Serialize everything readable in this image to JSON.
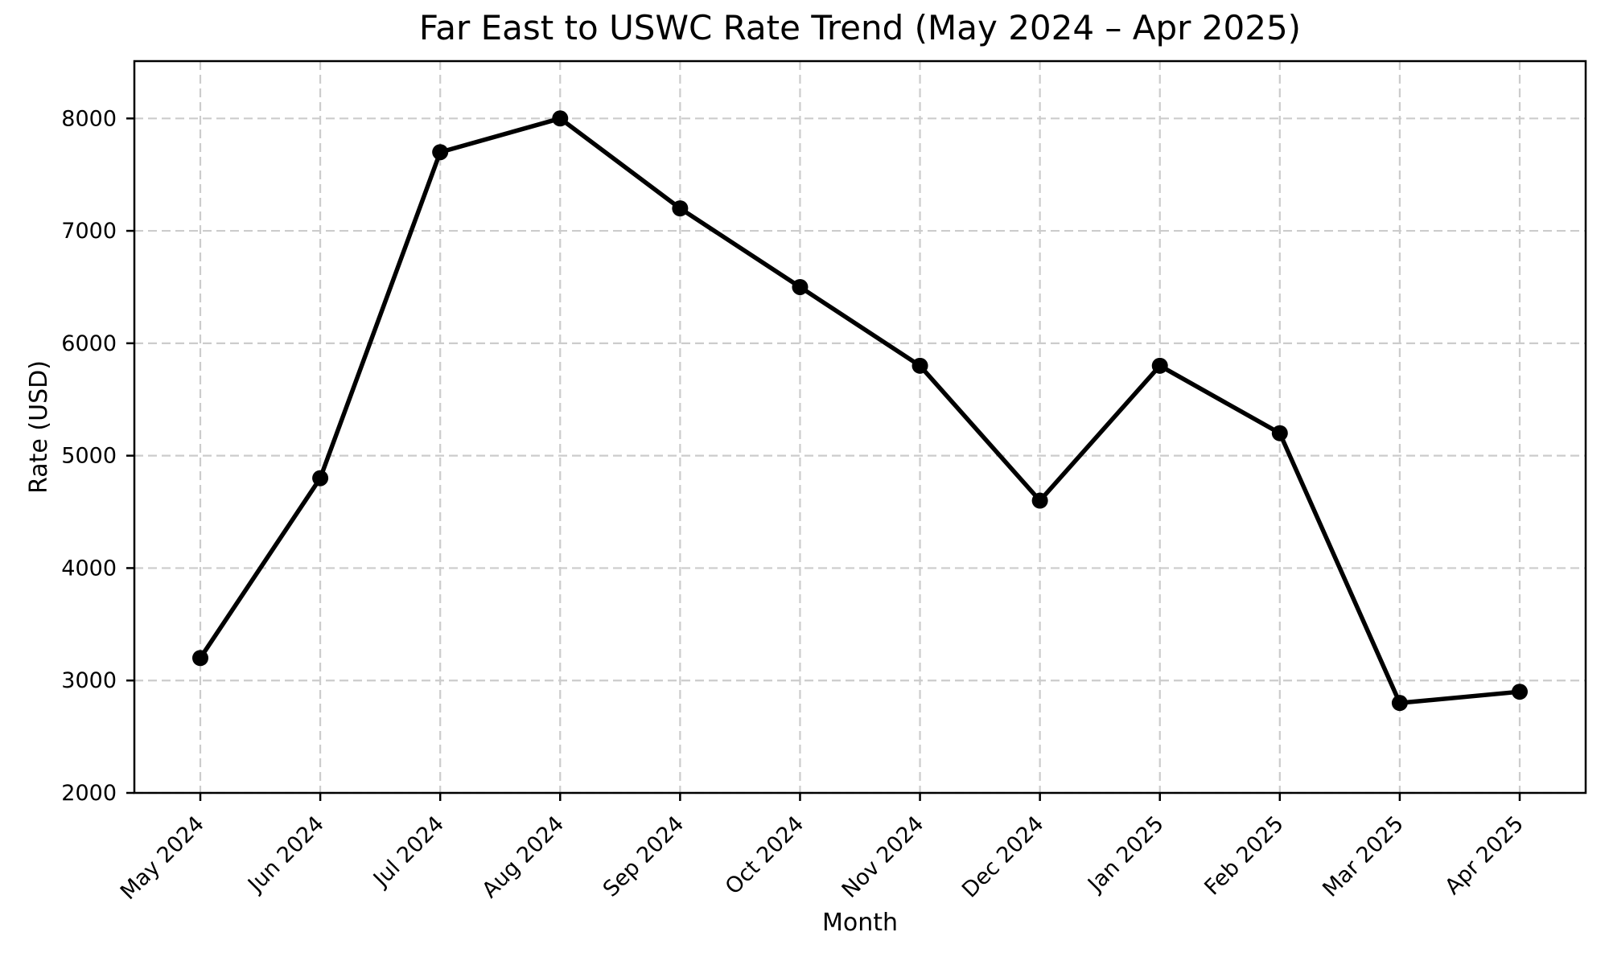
{
  "chart_data": {
    "type": "line",
    "title": "Far East to USWC Rate Trend (May 2024 – Apr 2025)",
    "xlabel": "Month",
    "ylabel": "Rate (USD)",
    "categories": [
      "May 2024",
      "Jun 2024",
      "Jul 2024",
      "Aug 2024",
      "Sep 2024",
      "Oct 2024",
      "Nov 2024",
      "Dec 2024",
      "Jan 2025",
      "Feb 2025",
      "Mar 2025",
      "Apr 2025"
    ],
    "series": [
      {
        "name": "Rate",
        "values": [
          3200,
          4800,
          7700,
          8000,
          7200,
          6500,
          5800,
          4600,
          5800,
          5200,
          2800,
          2900
        ]
      }
    ],
    "yticks": [
      2000,
      3000,
      4000,
      5000,
      6000,
      7000,
      8000
    ],
    "ylim": [
      2000,
      8510
    ],
    "grid": "dashed",
    "legend": "none",
    "line_color": "#000000",
    "marker": "circle",
    "marker_color": "#000000",
    "grid_color": "#cccccc",
    "spine_color": "#000000",
    "text_color": "#000000",
    "background_color": "#ffffff"
  }
}
